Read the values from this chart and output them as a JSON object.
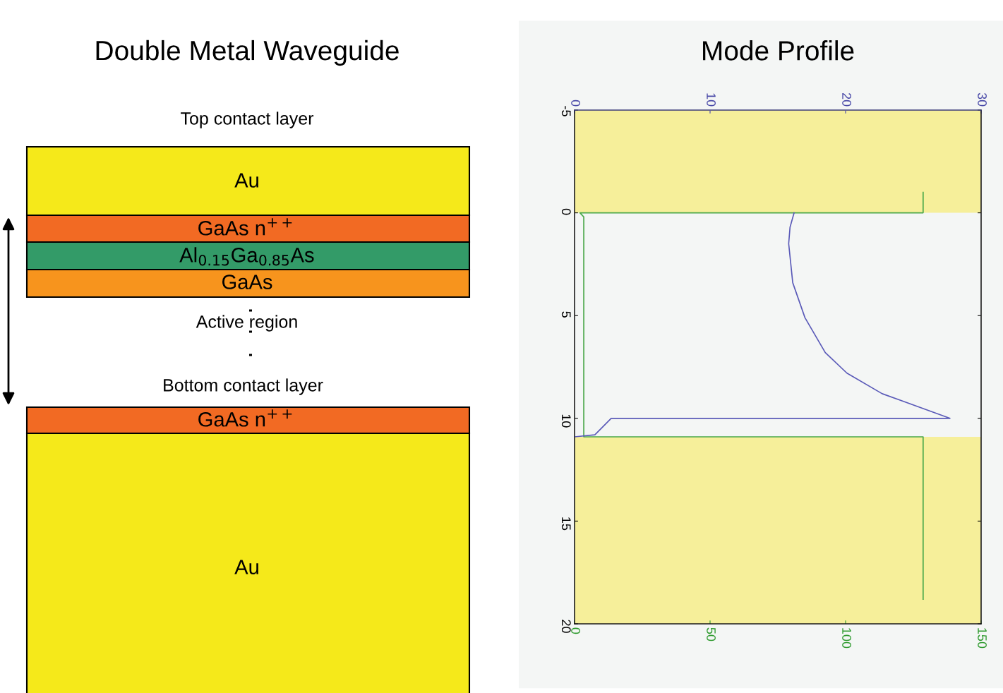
{
  "chart_data": [
    {
      "type": "other",
      "title": "Double Metal Waveguide",
      "annotations": [
        "Top contact layer",
        "Au",
        "GaAs n$^{++}$",
        "Al$_{0.15}$Ga$_{0.85}$As",
        "GaAs",
        "Active region",
        "Bottom contact layer",
        "GaAs n$^{++}$",
        "Au"
      ]
    },
    {
      "type": "line",
      "title": "Mode Profile",
      "grid": false,
      "marker": "none",
      "line_style": "solid",
      "ylim": [
        20,
        -5
      ],
      "yticks": [
        -5,
        0,
        5,
        10,
        15,
        20
      ],
      "xlim": [
        0,
        150
      ],
      "xticks": [
        0,
        50,
        100,
        150
      ],
      "x2lim": [
        0,
        30
      ],
      "x2ticks": [
        0,
        10,
        20,
        30
      ],
      "series": [
        {
          "color": "#5a5ab8",
          "axis": "x2",
          "x": [
            16.2,
            15.9,
            15.8,
            16.1,
            17.0,
            18.5,
            20.1,
            22.7,
            27.7,
            2.7,
            1.5,
            0
          ],
          "values": [
            0,
            0.7,
            1.5,
            3.4,
            5.1,
            6.8,
            7.8,
            8.8,
            10.0,
            10.0,
            10.8,
            10.9
          ]
        },
        {
          "color": "#4aa84a",
          "x": [
            128.6,
            128.6,
            2,
            3.4,
            3.4,
            128.6,
            128.6
          ],
          "values": [
            -1.0,
            0,
            0,
            0.2,
            10.9,
            10.9,
            18.8
          ]
        }
      ],
      "bands": [
        {
          "axis": "y",
          "from": -5,
          "to": 0,
          "color": "#f6ef9a"
        },
        {
          "axis": "y",
          "from": 10.9,
          "to": 20,
          "color": "#f6ef9a"
        }
      ]
    }
  ]
}
